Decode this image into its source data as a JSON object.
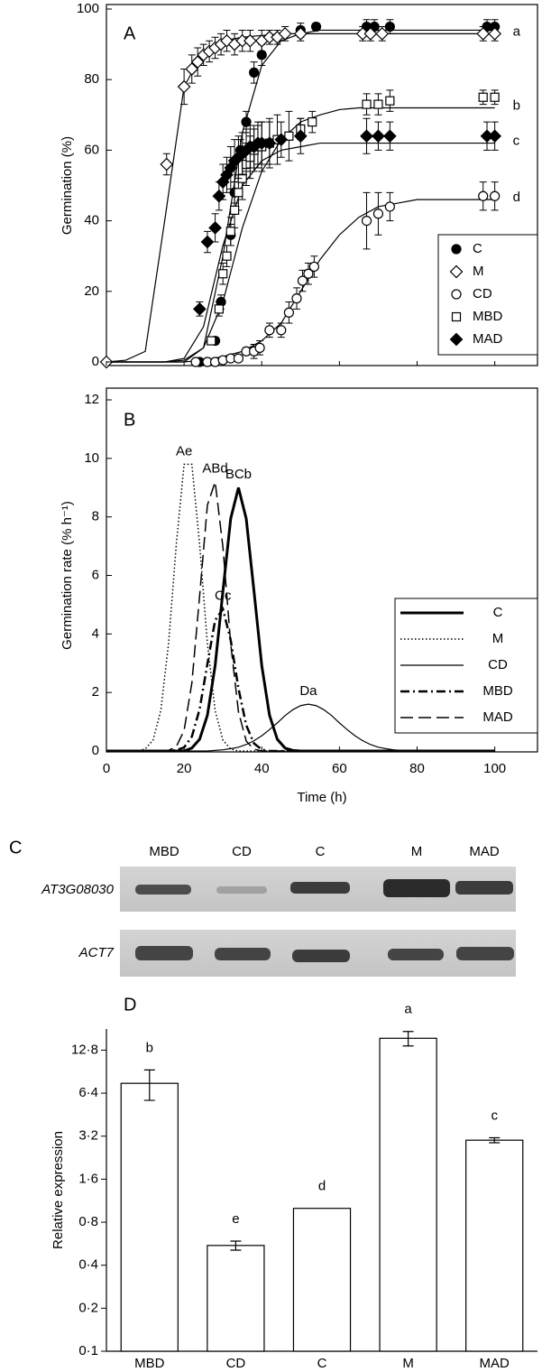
{
  "chart_data": [
    {
      "type": "scatter",
      "panel": "A",
      "y_label": "Germination (%)",
      "xlim": [
        0,
        111
      ],
      "ylim": [
        0,
        100
      ],
      "yticks": [
        0,
        20,
        40,
        60,
        80,
        100
      ],
      "legend": "lower right",
      "series": [
        {
          "name": "C",
          "marker": "circle",
          "filled": true,
          "color": "#000000",
          "x": [
            24,
            28,
            29.5,
            32,
            33,
            34.5,
            36,
            38,
            40,
            50,
            54,
            67,
            69,
            73,
            98,
            100
          ],
          "values": [
            0,
            6,
            17,
            36,
            48,
            60,
            68,
            82,
            87,
            94,
            95,
            95,
            95,
            95,
            95,
            95
          ],
          "errors": [
            0,
            1,
            2,
            3,
            3,
            3,
            3,
            3,
            3,
            2,
            1,
            2,
            2,
            2,
            2,
            2
          ],
          "fit": {
            "x": [
              0,
              5,
              10,
              15,
              20,
              25,
              30,
              35,
              40,
              45,
              50,
              55,
              60,
              65,
              70,
              75,
              80,
              85,
              90,
              95,
              100
            ],
            "values": [
              0,
              0,
              0,
              0,
              0,
              4,
              30,
              65,
              84,
              91,
              93,
              94,
              94,
              94,
              94,
              94,
              94,
              94,
              94,
              94,
              94
            ]
          }
        },
        {
          "name": "M",
          "marker": "diamond",
          "filled": false,
          "color": "#000000",
          "x": [
            0,
            15.5,
            20,
            22,
            23.5,
            25,
            26.5,
            28,
            29.5,
            31,
            33,
            35,
            37,
            40,
            42,
            44,
            46,
            50,
            66,
            68,
            71,
            97,
            100
          ],
          "values": [
            0,
            56,
            78,
            83,
            85,
            87,
            88,
            89,
            90,
            91,
            90,
            91,
            91,
            91,
            92,
            92,
            93,
            93,
            93,
            93,
            93,
            93,
            93
          ],
          "errors": [
            0,
            3,
            5,
            4,
            4,
            3,
            3,
            3,
            3,
            3,
            3,
            3,
            3,
            3,
            2,
            2,
            2,
            2,
            2,
            2,
            2,
            2,
            2
          ],
          "fit": {
            "x": [
              0,
              5,
              10,
              15,
              20,
              25,
              30,
              35,
              40,
              45,
              50,
              55,
              60,
              65,
              70,
              75,
              80,
              85,
              90,
              95,
              100
            ],
            "values": [
              0,
              0.5,
              3,
              40,
              78,
              88,
              91,
              92,
              92.5,
              93,
              93,
              93,
              93,
              93,
              93,
              93,
              93,
              93,
              93,
              93,
              93
            ]
          },
          "annotation": "a"
        },
        {
          "name": "CD",
          "marker": "circle",
          "filled": false,
          "color": "#000000",
          "x": [
            23,
            26,
            28,
            30,
            32,
            34,
            36,
            38,
            39.5,
            42,
            45,
            47,
            49,
            50.5,
            52,
            53.5,
            67,
            70,
            73,
            97,
            100
          ],
          "values": [
            0,
            0,
            0,
            0.5,
            1,
            1,
            3,
            3,
            4,
            9,
            9,
            14,
            18,
            23,
            25,
            27,
            40,
            42,
            44,
            47,
            47
          ],
          "errors": [
            0,
            0,
            0,
            0.5,
            0.5,
            0.5,
            1,
            2,
            2,
            2,
            2,
            3,
            3,
            3,
            3,
            3,
            8,
            6,
            4,
            4,
            4
          ],
          "fit": {
            "x": [
              0,
              5,
              10,
              15,
              20,
              25,
              30,
              35,
              40,
              45,
              50,
              55,
              60,
              65,
              70,
              75,
              80,
              85,
              90,
              95,
              100
            ],
            "values": [
              0,
              0,
              0,
              0,
              0,
              0.5,
              1.5,
              3,
              6,
              11,
              20,
              29,
              36,
              41,
              44,
              45,
              46,
              46,
              46,
              46,
              46
            ]
          },
          "annotation": "d"
        },
        {
          "name": "MBD",
          "marker": "square",
          "filled": false,
          "color": "#000000",
          "x": [
            27,
            29,
            30,
            31,
            32,
            33,
            34,
            35,
            36,
            37,
            38,
            39,
            40,
            42,
            44,
            47,
            50,
            53,
            67,
            70,
            73,
            97,
            100
          ],
          "values": [
            6,
            15,
            25,
            30,
            37,
            43,
            48,
            52,
            56,
            58,
            60,
            61,
            61,
            62,
            63,
            64,
            66,
            68,
            73,
            73,
            74,
            75,
            75
          ],
          "errors": [
            1,
            2,
            3,
            3,
            4,
            5,
            5,
            6,
            6,
            6,
            6,
            6,
            7,
            7,
            7,
            7,
            3,
            3,
            3,
            3,
            3,
            2,
            2
          ],
          "fit": {
            "x": [
              0,
              5,
              10,
              15,
              20,
              25,
              30,
              35,
              40,
              45,
              50,
              55,
              60,
              65,
              70,
              75,
              80,
              85,
              90,
              95,
              100
            ],
            "values": [
              0,
              0,
              0,
              0,
              0.5,
              4,
              17,
              38,
              54,
              63,
              68,
              70,
              71.5,
              72,
              72,
              72,
              72,
              72,
              72,
              72,
              72
            ]
          },
          "annotation": "b"
        },
        {
          "name": "MAD",
          "marker": "diamond",
          "filled": true,
          "color": "#000000",
          "x": [
            24,
            26,
            28,
            29,
            30,
            31,
            32,
            33,
            34,
            35,
            36,
            37,
            38,
            39,
            40,
            42,
            45,
            50,
            67,
            70,
            73,
            98,
            100
          ],
          "values": [
            15,
            34,
            38,
            47,
            51,
            53,
            55,
            57,
            58,
            59,
            60,
            61,
            61,
            62,
            62,
            62,
            63,
            64,
            64,
            64,
            64,
            64,
            64
          ],
          "errors": [
            2,
            3,
            4,
            4,
            5,
            5,
            6,
            6,
            6,
            6,
            6,
            6,
            6,
            6,
            6,
            6,
            5,
            5,
            5,
            4,
            4,
            4,
            4
          ],
          "fit": {
            "x": [
              0,
              5,
              10,
              15,
              20,
              25,
              30,
              35,
              40,
              45,
              50,
              55,
              60,
              65,
              70,
              75,
              80,
              85,
              90,
              95,
              100
            ],
            "values": [
              0,
              0,
              0,
              0,
              1,
              10,
              33,
              50,
              57,
              60,
              61,
              62,
              62,
              62,
              62,
              62,
              62,
              62,
              62,
              62,
              62
            ]
          },
          "annotation": "c"
        }
      ]
    },
    {
      "type": "line",
      "panel": "B",
      "x_label": "Time (h)",
      "y_label": "Germination rate (% h⁻¹)",
      "xlim": [
        0,
        111
      ],
      "ylim": [
        0,
        12
      ],
      "xticks": [
        0,
        20,
        40,
        60,
        80,
        100
      ],
      "yticks": [
        0,
        2,
        4,
        6,
        8,
        10,
        12
      ],
      "legend": "lower right",
      "x": [
        0,
        2,
        4,
        6,
        8,
        10,
        12,
        14,
        16,
        18,
        20,
        22,
        24,
        26,
        28,
        30,
        32,
        34,
        36,
        38,
        40,
        42,
        44,
        46,
        48,
        50,
        52,
        54,
        56,
        58,
        60,
        62,
        64,
        66,
        68,
        70,
        72,
        74,
        76,
        78,
        80,
        82,
        84,
        86,
        88,
        90,
        92,
        94,
        96,
        98,
        100
      ],
      "series": [
        {
          "name": "C",
          "line_style": "solid",
          "line_width": 3,
          "color": "#000000",
          "annotation": "BCb",
          "values": [
            0,
            0,
            0,
            0,
            0,
            0,
            0,
            0,
            0,
            0,
            0,
            0.1,
            0.4,
            1.22,
            2.92,
            5.46,
            7.94,
            9.0,
            7.94,
            5.46,
            2.92,
            1.22,
            0.4,
            0.1,
            0.02,
            0,
            0,
            0,
            0,
            0,
            0,
            0,
            0,
            0,
            0,
            0,
            0,
            0,
            0,
            0,
            0,
            0,
            0,
            0,
            0,
            0,
            0,
            0,
            0,
            0,
            0
          ]
        },
        {
          "name": "M",
          "line_style": "dotted",
          "line_width": 1.5,
          "color": "#000000",
          "annotation": "Ae",
          "values": [
            0,
            0,
            0,
            0,
            0,
            0.07,
            0.37,
            1.38,
            3.67,
            7.07,
            9.8,
            9.8,
            7.07,
            3.67,
            1.38,
            0.37,
            0.07,
            0,
            0,
            0,
            0,
            0,
            0,
            0,
            0,
            0,
            0,
            0,
            0,
            0,
            0,
            0,
            0,
            0,
            0,
            0,
            0,
            0,
            0,
            0,
            0,
            0,
            0,
            0,
            0,
            0,
            0,
            0,
            0,
            0,
            0
          ]
        },
        {
          "name": "CD",
          "line_style": "solid",
          "line_width": 1.2,
          "color": "#000000",
          "annotation": "Da",
          "values": [
            0,
            0,
            0,
            0,
            0,
            0,
            0,
            0,
            0,
            0,
            0,
            0,
            0,
            0,
            0.02,
            0.04,
            0.08,
            0.13,
            0.22,
            0.35,
            0.52,
            0.73,
            0.96,
            1.21,
            1.41,
            1.55,
            1.6,
            1.55,
            1.41,
            1.21,
            0.96,
            0.73,
            0.52,
            0.35,
            0.22,
            0.13,
            0.08,
            0.04,
            0.02,
            0.01,
            0,
            0,
            0,
            0,
            0,
            0,
            0,
            0,
            0,
            0,
            0
          ]
        },
        {
          "name": "MBD",
          "line_style": "dashdot",
          "line_width": 2.5,
          "color": "#000000",
          "annotation": "Cc",
          "values": [
            0,
            0,
            0,
            0,
            0,
            0,
            0,
            0,
            0,
            0.03,
            0.12,
            0.49,
            1.43,
            2.97,
            4.47,
            4.85,
            3.79,
            2.14,
            0.88,
            0.26,
            0.05,
            0,
            0,
            0,
            0,
            0,
            0,
            0,
            0,
            0,
            0,
            0,
            0,
            0,
            0,
            0,
            0,
            0,
            0,
            0,
            0,
            0,
            0,
            0,
            0,
            0,
            0,
            0,
            0,
            0,
            0
          ]
        },
        {
          "name": "MAD",
          "line_style": "dashed",
          "line_width": 1.5,
          "color": "#000000",
          "annotation": "ABd",
          "values": [
            0,
            0,
            0,
            0,
            0,
            0,
            0,
            0,
            0.02,
            0.15,
            0.7,
            2.32,
            5.3,
            8.4,
            9.2,
            6.97,
            3.67,
            1.34,
            0.34,
            0.06,
            0,
            0,
            0,
            0,
            0,
            0,
            0,
            0,
            0,
            0,
            0,
            0,
            0,
            0,
            0,
            0,
            0,
            0,
            0,
            0,
            0,
            0,
            0,
            0,
            0,
            0,
            0,
            0,
            0,
            0,
            0
          ]
        }
      ]
    },
    {
      "type": "bar",
      "panel": "D",
      "y_label": "Relative expression",
      "log_scale": true,
      "color": "#ffffff",
      "categories": [
        "MBD",
        "CD",
        "C",
        "M",
        "MAD"
      ],
      "values": [
        7.5,
        0.55,
        1.0,
        15.5,
        3.0
      ],
      "errors": [
        1.8,
        0.04,
        null,
        1.8,
        0.12
      ],
      "annotations": [
        "b",
        "e",
        "d",
        "a",
        "c"
      ],
      "ylim": [
        0.1,
        18
      ],
      "yticks": [
        {
          "value": 0.1,
          "label": "0·1"
        },
        {
          "value": 0.2,
          "label": "0·2"
        },
        {
          "value": 0.4,
          "label": "0·4"
        },
        {
          "value": 0.8,
          "label": "0·8"
        },
        {
          "value": 1.6,
          "label": "1·6"
        },
        {
          "value": 3.2,
          "label": "3·2"
        },
        {
          "value": 6.4,
          "label": "6·4"
        },
        {
          "value": 12.8,
          "label": "12·8"
        }
      ]
    }
  ],
  "gel": {
    "panel": "C",
    "lanes": [
      "MBD",
      "CD",
      "C",
      "M",
      "MAD"
    ],
    "genes": [
      "AT3G08030",
      "ACT7"
    ]
  }
}
